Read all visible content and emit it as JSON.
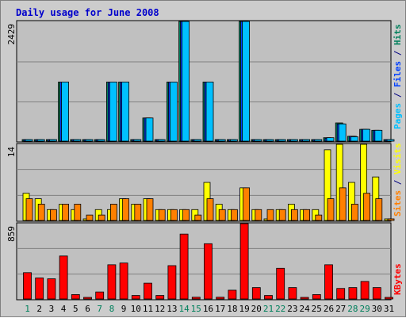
{
  "chart_data": {
    "type": "bar",
    "title": "Daily usage for June 2008",
    "colors": {
      "background": "#cccccc",
      "plot_background": "#c0c0c0",
      "frame_border": "#808080",
      "title": "#0000cc",
      "hits": "#00805c",
      "files": "#0040ff",
      "pages": "#00c0ff",
      "visits": "#ffff00",
      "sites": "#ff8000",
      "kbytes": "#ff0000",
      "weekend_label": "#00805c",
      "weekday_label": "#000080"
    },
    "categories": [
      "1",
      "2",
      "3",
      "4",
      "5",
      "6",
      "7",
      "8",
      "9",
      "10",
      "11",
      "12",
      "13",
      "14",
      "15",
      "16",
      "17",
      "18",
      "19",
      "20",
      "21",
      "22",
      "23",
      "24",
      "25",
      "26",
      "27",
      "28",
      "29",
      "30",
      "31"
    ],
    "weekend_days": [
      "1",
      "7",
      "8",
      "14",
      "15",
      "21",
      "22",
      "28",
      "29"
    ],
    "panels": [
      {
        "id": "top",
        "axis_max_label": "2429",
        "ylim": [
          0,
          2429
        ],
        "right_labels": [
          {
            "text": "Hits",
            "color": "#00805c"
          },
          {
            "text": "/",
            "color": "#000080"
          },
          {
            "text": "Files",
            "color": "#0040ff"
          },
          {
            "text": "/",
            "color": "#000080"
          },
          {
            "text": "Pages",
            "color": "#00c0ff"
          }
        ],
        "series": [
          {
            "name": "Hits",
            "color": "#00805c",
            "values": [
              0,
              0,
              0,
              1200,
              0,
              0,
              0,
              1200,
              1200,
              0,
              470,
              0,
              1200,
              2429,
              0,
              1200,
              0,
              0,
              2429,
              0,
              0,
              0,
              0,
              0,
              0,
              70,
              370,
              100,
              240,
              220,
              0
            ]
          },
          {
            "name": "Files",
            "color": "#0040ff",
            "values": [
              0,
              0,
              0,
              1200,
              0,
              0,
              0,
              1200,
              1200,
              0,
              470,
              0,
              1200,
              2429,
              0,
              1200,
              0,
              0,
              2429,
              0,
              0,
              0,
              0,
              0,
              0,
              60,
              350,
              100,
              240,
              220,
              0
            ]
          },
          {
            "name": "Pages",
            "color": "#00c0ff",
            "values": [
              0,
              0,
              0,
              1200,
              0,
              0,
              0,
              1200,
              1200,
              0,
              470,
              0,
              1200,
              2429,
              0,
              1200,
              0,
              0,
              2429,
              0,
              0,
              0,
              0,
              0,
              0,
              70,
              350,
              90,
              240,
              220,
              0
            ]
          }
        ]
      },
      {
        "id": "middle",
        "axis_max_label": "14",
        "ylim": [
          0,
          14
        ],
        "right_labels": [
          {
            "text": "Visits",
            "color": "#ffff00"
          },
          {
            "text": "/",
            "color": "#000080"
          },
          {
            "text": "Sites",
            "color": "#ff8000"
          }
        ],
        "series": [
          {
            "name": "Visits",
            "color": "#ffff00",
            "values": [
              5,
              4,
              2,
              3,
              2,
              0,
              2,
              2,
              4,
              3,
              4,
              2,
              2,
              2,
              2,
              7,
              3,
              2,
              6,
              2,
              0,
              2,
              3,
              2,
              2,
              13,
              14,
              7,
              14,
              8,
              0
            ]
          },
          {
            "name": "Sites",
            "color": "#ff8000",
            "values": [
              4,
              3,
              2,
              3,
              3,
              1,
              1,
              3,
              4,
              3,
              4,
              2,
              2,
              2,
              1,
              4,
              2,
              2,
              6,
              2,
              2,
              2,
              2,
              2,
              1,
              4,
              6,
              3,
              5,
              4,
              0
            ]
          }
        ]
      },
      {
        "id": "bottom",
        "axis_max_label": "859",
        "ylim": [
          0,
          859
        ],
        "right_labels": [
          {
            "text": "KBytes",
            "color": "#ff0000"
          }
        ],
        "series": [
          {
            "name": "KBytes",
            "color": "#ff0000",
            "values": [
              300,
              240,
              230,
              490,
              50,
              0,
              80,
              390,
              410,
              40,
              180,
              40,
              380,
              740,
              20,
              630,
              20,
              100,
              859,
              130,
              40,
              350,
              130,
              0,
              50,
              390,
              120,
              130,
              200,
              130,
              0
            ]
          }
        ]
      }
    ]
  }
}
